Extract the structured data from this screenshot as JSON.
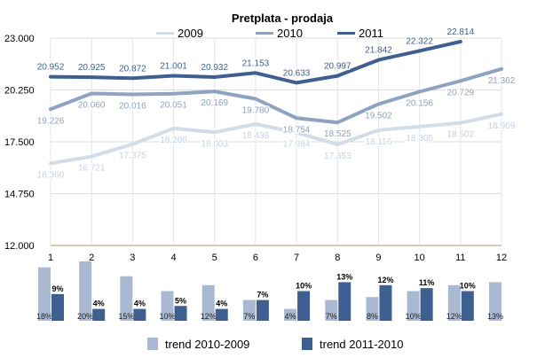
{
  "chart_data": [
    {
      "type": "line",
      "title": "Pretplata - prodaja",
      "x": [
        1,
        2,
        3,
        4,
        5,
        6,
        7,
        8,
        9,
        10,
        11,
        12
      ],
      "xlabel": "",
      "ylabel": "",
      "ylim": [
        12000,
        23000
      ],
      "yticks": [
        "12.000",
        "14.750",
        "17.500",
        "20.250",
        "23.000"
      ],
      "grid": true,
      "legend_position": "top",
      "series": [
        {
          "name": "2009",
          "color": "#d3ddea",
          "values": [
            16360,
            16721,
            17375,
            18208,
            18003,
            18438,
            17984,
            17353,
            18116,
            18305,
            18502,
            18969
          ],
          "labels": [
            "16.360",
            "16.721",
            "17.375",
            "18.208",
            "18.003",
            "18.438",
            "17.984",
            "17.353",
            "18.116",
            "18.305",
            "18.502",
            "18.969"
          ]
        },
        {
          "name": "2010",
          "color": "#8ea3c0",
          "values": [
            19226,
            20060,
            20016,
            20051,
            20169,
            19780,
            18754,
            18525,
            19502,
            20156,
            20729,
            21362
          ],
          "labels": [
            "19.226",
            "20.060",
            "20.016",
            "20.051",
            "20.169",
            "19.780",
            "18.754",
            "18.525",
            "19.502",
            "20.156",
            "20.729",
            "21.362"
          ]
        },
        {
          "name": "2011",
          "color": "#3e5f8f",
          "values": [
            20952,
            20925,
            20872,
            21001,
            20932,
            21153,
            20633,
            20997,
            21842,
            22322,
            22814,
            null
          ],
          "labels": [
            "20.952",
            "20.925",
            "20.872",
            "21.001",
            "20.932",
            "21.153",
            "20.633",
            "20.997",
            "21.842",
            "22.322",
            "22.814",
            ""
          ]
        }
      ]
    },
    {
      "type": "bar",
      "categories": [
        "1",
        "2",
        "3",
        "4",
        "5",
        "6",
        "7",
        "8",
        "9",
        "10",
        "11",
        "12"
      ],
      "legend_position": "bottom",
      "series": [
        {
          "name": "trend 2010-2009",
          "color": "#a9b9d2",
          "values": [
            18,
            20,
            15,
            10,
            12,
            7,
            4,
            7,
            8,
            10,
            12,
            13
          ],
          "labels": [
            "18%",
            "20%",
            "15%",
            "10%",
            "12%",
            "7%",
            "4%",
            "7%",
            "8%",
            "10%",
            "12%",
            "13%"
          ]
        },
        {
          "name": "trend 2011-2010",
          "color": "#3e5f8f",
          "values": [
            9,
            4,
            4,
            5,
            4,
            7,
            10,
            13,
            12,
            11,
            10,
            null
          ],
          "labels": [
            "9%",
            "4%",
            "4%",
            "5%",
            "4%",
            "7%",
            "10%",
            "13%",
            "12%",
            "11%",
            "10%",
            ""
          ]
        }
      ]
    }
  ]
}
